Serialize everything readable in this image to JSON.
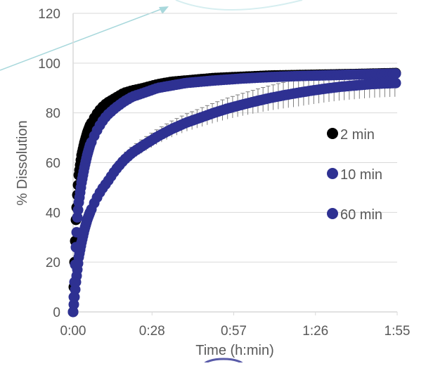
{
  "chart_data": {
    "type": "scatter",
    "title": "",
    "xlabel": "Time (h:min)",
    "ylabel": "% Dissolution",
    "xlim": [
      0,
      115
    ],
    "ylim": [
      0,
      120
    ],
    "x_ticks": [
      0,
      28,
      57,
      86,
      115
    ],
    "x_tick_labels": [
      "0:00",
      "0:28",
      "0:57",
      "1:26",
      "1:55"
    ],
    "y_ticks": [
      0,
      20,
      40,
      60,
      80,
      100,
      120
    ],
    "y_tick_labels": [
      "0",
      "20",
      "40",
      "60",
      "80",
      "100",
      "120"
    ],
    "grid": "horizontal",
    "legend_position": "right",
    "error_bars": "on 60 min series",
    "colors": {
      "axis": "#d9d9d9",
      "gridline": "#d9d9d9",
      "text": "#595959",
      "error_bar": "#7f7f7f",
      "arrow": "#a8d8dc"
    },
    "series": [
      {
        "name": "2 min",
        "color": "#000000",
        "x": [
          0,
          0.5,
          1,
          1.5,
          2,
          3,
          4,
          5,
          6,
          8,
          10,
          12,
          15,
          18,
          21,
          25,
          30,
          35,
          40,
          50,
          60,
          70,
          80,
          90,
          100,
          115
        ],
        "y": [
          0,
          20,
          37,
          47,
          55,
          63,
          68,
          72,
          75,
          79,
          82,
          84,
          86,
          88,
          89,
          90,
          91.5,
          92.5,
          93,
          94,
          94.5,
          95,
          95.2,
          95.4,
          95.6,
          96
        ]
      },
      {
        "name": "10 min",
        "color": "#2e3192",
        "x": [
          0,
          0.5,
          1,
          1.5,
          2,
          3,
          4,
          5,
          6,
          8,
          10,
          12,
          15,
          18,
          21,
          25,
          30,
          35,
          40,
          50,
          60,
          70,
          80,
          90,
          100,
          115
        ],
        "y": [
          0,
          12,
          26,
          38,
          44,
          52,
          58,
          63,
          67,
          72,
          76,
          79,
          82,
          84.5,
          86.5,
          88,
          90,
          91,
          92,
          93,
          93.8,
          94.4,
          94.8,
          95.1,
          95.4,
          95.8
        ]
      },
      {
        "name": "60 min",
        "color": "#2e3192",
        "x": [
          0,
          1,
          2,
          3,
          4,
          5,
          6,
          8,
          10,
          12,
          15,
          18,
          21,
          25,
          30,
          35,
          40,
          45,
          50,
          55,
          60,
          65,
          70,
          75,
          80,
          85,
          90,
          95,
          100,
          105,
          110,
          115
        ],
        "y": [
          0,
          12,
          22,
          28,
          33,
          37,
          40,
          45,
          49,
          52,
          57,
          61,
          64,
          67,
          70.5,
          73.5,
          76,
          78,
          80,
          81.8,
          83.3,
          84.7,
          86,
          87.1,
          88.1,
          89,
          89.8,
          90.5,
          91,
          91.5,
          91.8,
          92
        ]
      }
    ]
  }
}
